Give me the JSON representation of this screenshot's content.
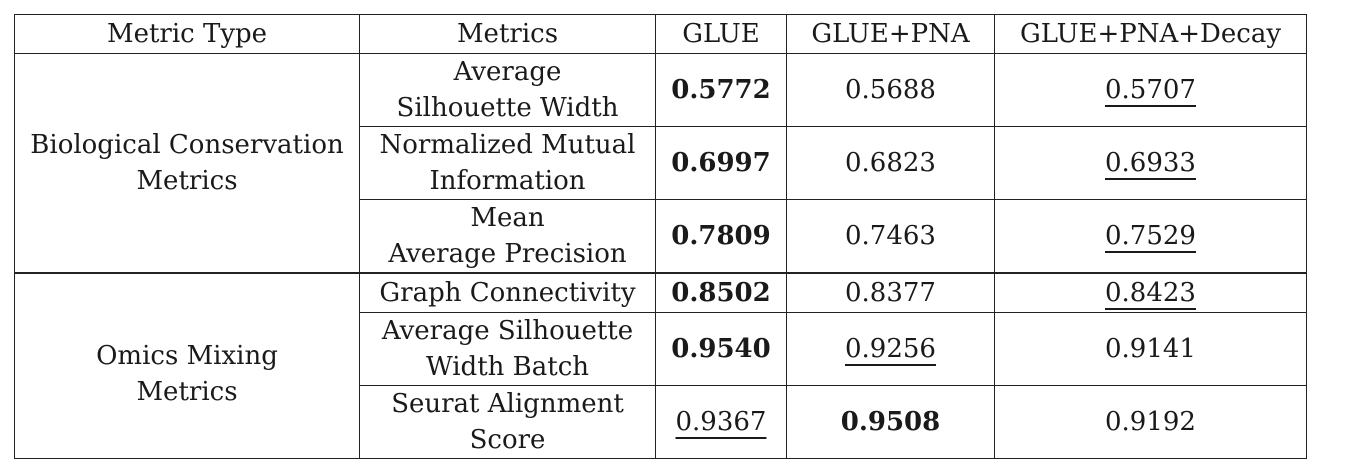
{
  "table": {
    "headers": [
      "Metric Type",
      "Metrics",
      "GLUE",
      "GLUE+PNA",
      "GLUE+PNA+Decay"
    ],
    "groups": [
      {
        "name": "Biological Conservation\nMetrics",
        "rows": [
          {
            "metric": "Average\nSilhouette Width",
            "glue": "0.5772",
            "glue_pna": "0.5688",
            "glue_pna_decay": "0.5707"
          },
          {
            "metric": "Normalized Mutual\nInformation",
            "glue": "0.6997",
            "glue_pna": "0.6823",
            "glue_pna_decay": "0.6933"
          },
          {
            "metric": "Mean\nAverage Precision",
            "glue": "0.7809",
            "glue_pna": "0.7463",
            "glue_pna_decay": "0.7529"
          }
        ]
      },
      {
        "name": "Omics Mixing\nMetrics",
        "rows": [
          {
            "metric": "Graph Connectivity",
            "glue": "0.8502",
            "glue_pna": "0.8377",
            "glue_pna_decay": "0.8423"
          },
          {
            "metric": "Average Silhouette\nWidth Batch",
            "glue": "0.9540",
            "glue_pna": "0.9256",
            "glue_pna_decay": "0.9141"
          },
          {
            "metric": "Seurat Alignment\nScore",
            "glue": "0.9367",
            "glue_pna": "0.9508",
            "glue_pna_decay": "0.9192"
          }
        ]
      }
    ]
  }
}
